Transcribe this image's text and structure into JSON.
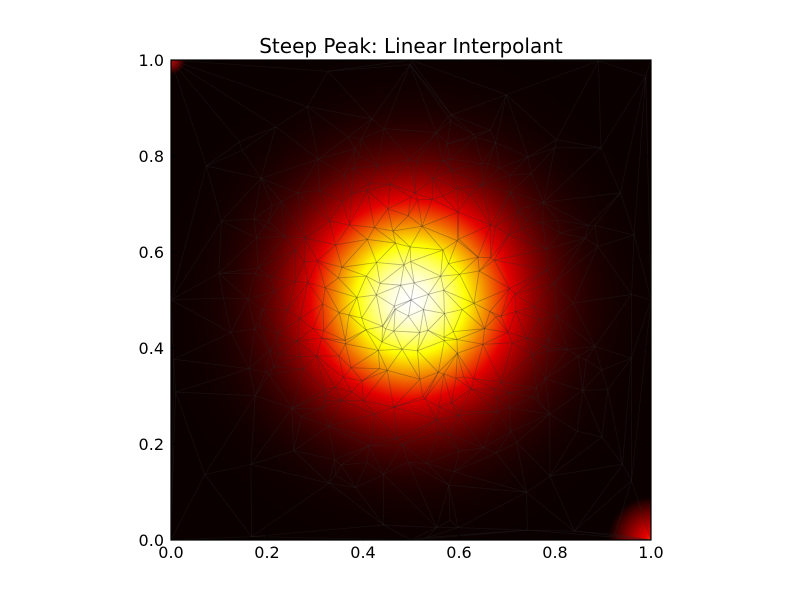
{
  "chart_data": {
    "type": "heatmap",
    "title": "Steep Peak: Linear Interpolant",
    "xlabel": "",
    "ylabel": "",
    "xlim": [
      0.0,
      1.0
    ],
    "ylim": [
      0.0,
      1.0
    ],
    "xticks": [
      "0.0",
      "0.2",
      "0.4",
      "0.6",
      "0.8",
      "1.0"
    ],
    "yticks": [
      "0.0",
      "0.2",
      "0.4",
      "0.6",
      "0.8",
      "1.0"
    ],
    "colormap": [
      "#0a0000",
      "#e60000",
      "#ffff00",
      "#ffffff"
    ],
    "peak_center": [
      0.5,
      0.5
    ],
    "grid": false,
    "legend": "none",
    "overlay": "triangular mesh"
  }
}
